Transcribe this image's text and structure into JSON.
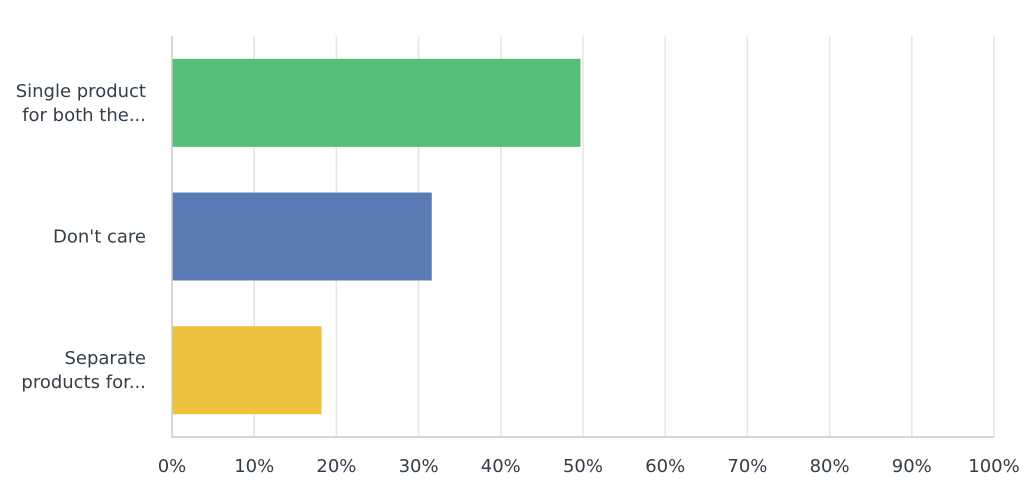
{
  "chart_data": {
    "type": "bar",
    "orientation": "horizontal",
    "categories": [
      [
        "Single product",
        "for both the..."
      ],
      [
        "Don't care"
      ],
      [
        "Separate",
        "products for..."
      ]
    ],
    "values": [
      49.7,
      31.6,
      18.2
    ],
    "colors": [
      "#57be77",
      "#5b7bb4",
      "#efc23e"
    ],
    "xlim": [
      0,
      100
    ],
    "ticks": [
      0,
      10,
      20,
      30,
      40,
      50,
      60,
      70,
      80,
      90,
      100
    ],
    "tick_labels": [
      "0%",
      "10%",
      "20%",
      "30%",
      "40%",
      "50%",
      "60%",
      "70%",
      "80%",
      "90%",
      "100%"
    ],
    "grid": true,
    "legend": "none"
  }
}
